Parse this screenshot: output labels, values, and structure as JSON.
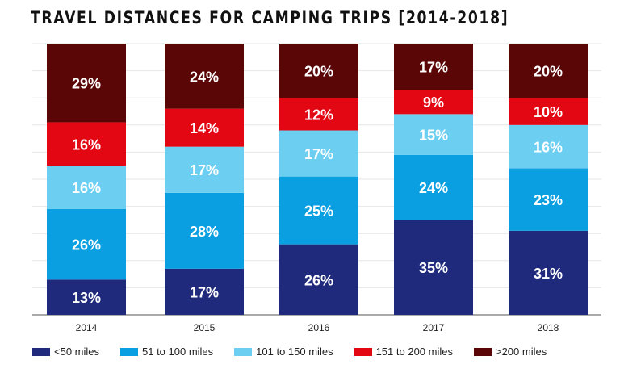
{
  "chart_data": {
    "type": "bar",
    "stacked": true,
    "title": "TRAVEL DISTANCES FOR CAMPING TRIPS [2014-2018]",
    "xlabel": "",
    "ylabel": "",
    "ylim": [
      0,
      100
    ],
    "grid": true,
    "legend_position": "bottom",
    "categories": [
      "2014",
      "2015",
      "2016",
      "2017",
      "2018"
    ],
    "series": [
      {
        "name": "<50 miles",
        "color": "#1f2a7c",
        "values": [
          13,
          17,
          26,
          35,
          31
        ]
      },
      {
        "name": "51 to 100 miles",
        "color": "#0a9fe0",
        "values": [
          26,
          28,
          25,
          24,
          23
        ]
      },
      {
        "name": "101 to 150 miles",
        "color": "#6ccff2",
        "values": [
          16,
          17,
          17,
          15,
          16
        ]
      },
      {
        "name": "151 to 200 miles",
        "color": "#e30613",
        "values": [
          16,
          14,
          12,
          9,
          10
        ]
      },
      {
        "name": ">200 miles",
        "color": "#5a0606",
        "values": [
          29,
          24,
          20,
          17,
          20
        ]
      }
    ],
    "value_suffix": "%"
  }
}
